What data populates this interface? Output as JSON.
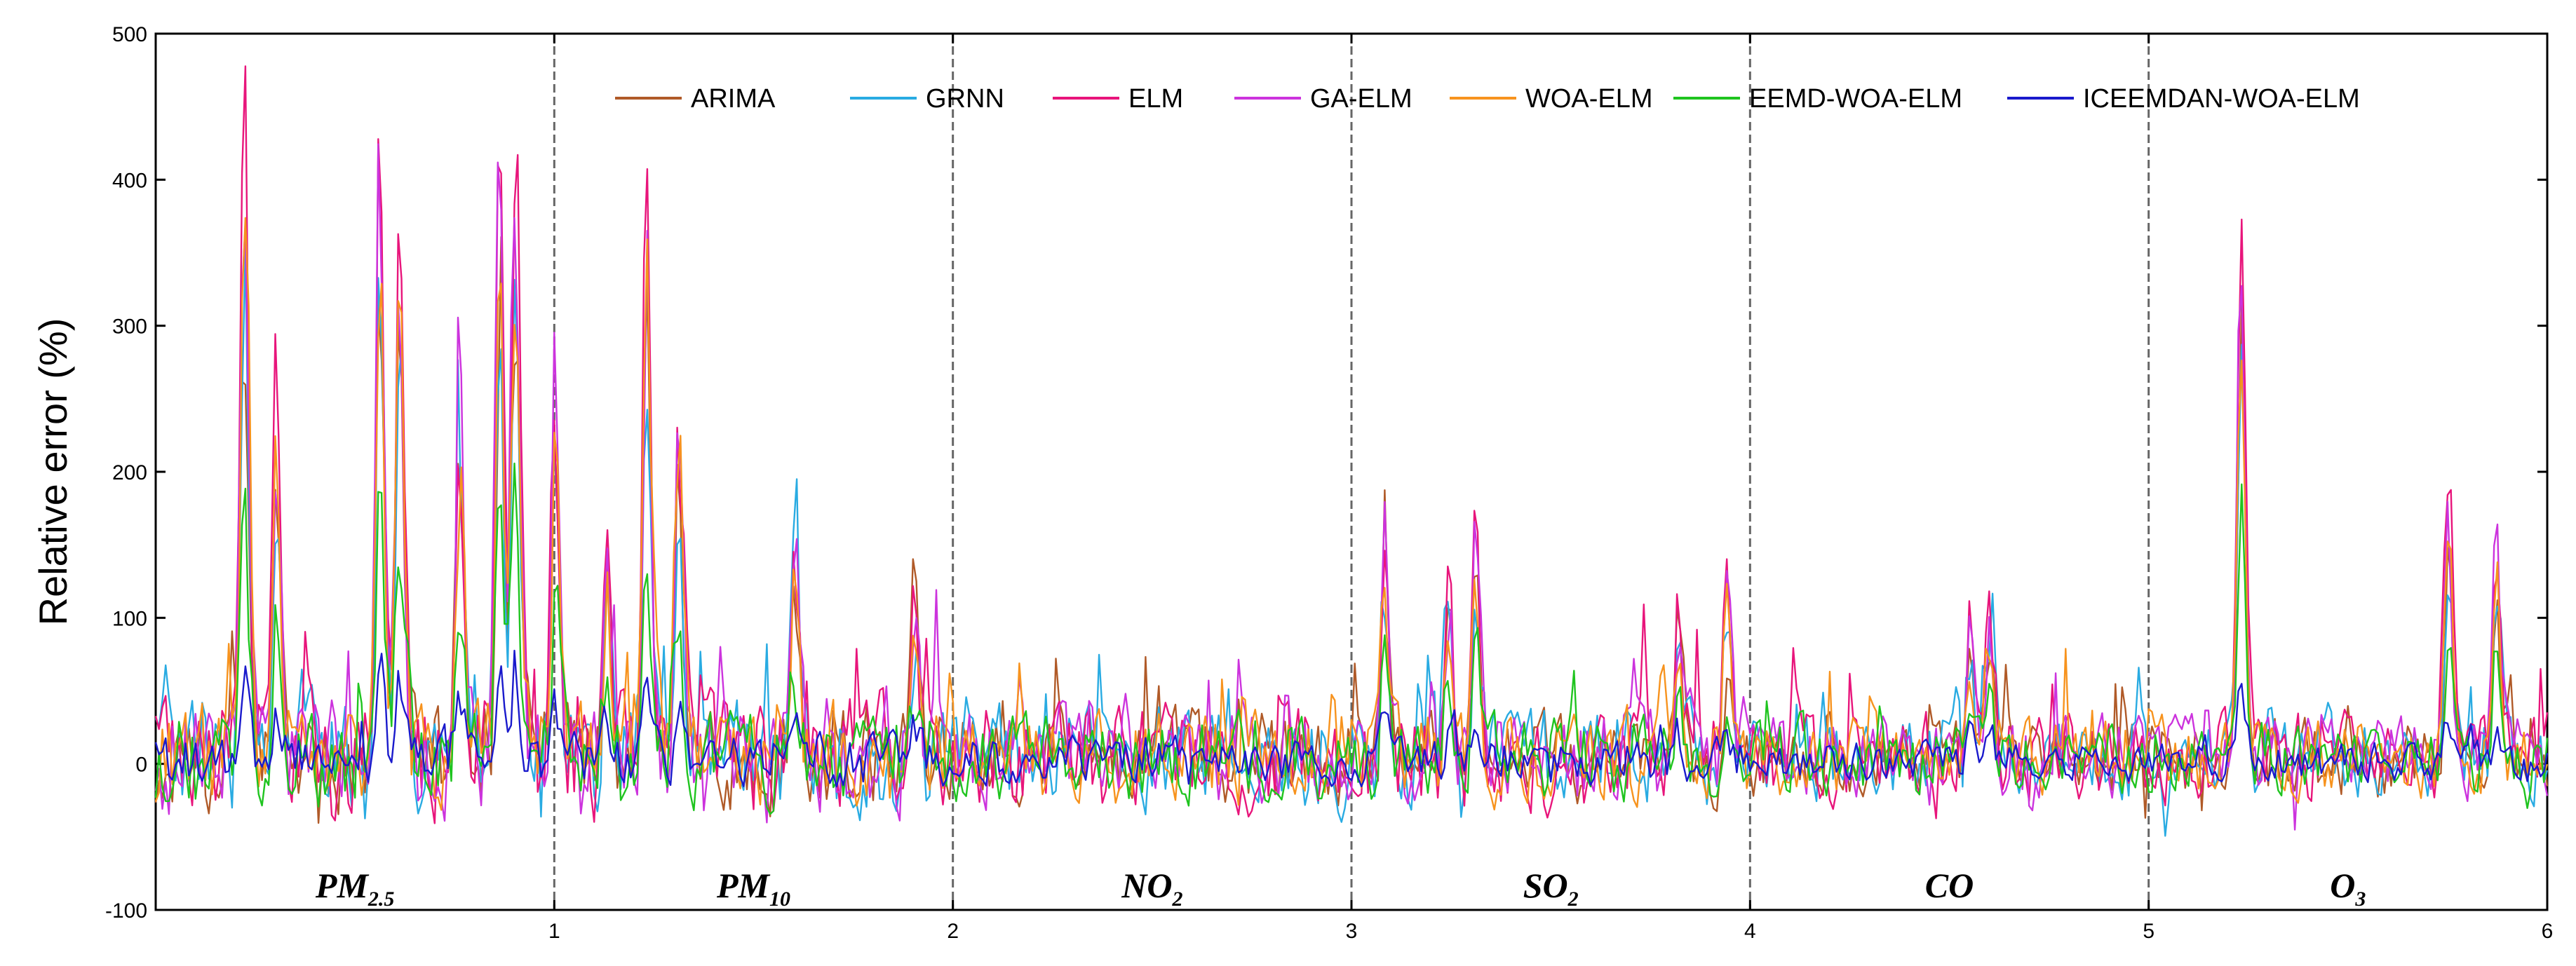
{
  "chart_data": {
    "type": "line",
    "title": "",
    "xlabel": "",
    "ylabel": "Relative error (%)",
    "xlim": [
      0,
      6
    ],
    "ylim": [
      -100,
      500
    ],
    "xticks": [
      1,
      2,
      3,
      4,
      5,
      6
    ],
    "yticks": [
      -100,
      0,
      100,
      200,
      300,
      400,
      500
    ],
    "grid": false,
    "legend_position": "top",
    "dividers": [
      1,
      2,
      3,
      4,
      5
    ],
    "regions": [
      {
        "main": "PM",
        "sub": "2.5",
        "center": 0.5
      },
      {
        "main": "PM",
        "sub": "10",
        "center": 1.5
      },
      {
        "main": "NO",
        "sub": "2",
        "center": 2.5
      },
      {
        "main": "SO",
        "sub": "2",
        "center": 3.5
      },
      {
        "main": "CO",
        "sub": "",
        "center": 4.5
      },
      {
        "main": "O",
        "sub": "3",
        "center": 5.5
      }
    ],
    "series": [
      {
        "name": "ARIMA",
        "color": "#b05a28",
        "amplitude": 0.85,
        "noise": 22,
        "spikeScale": 0.8,
        "seed": 11
      },
      {
        "name": "GRNN",
        "color": "#29abe2",
        "amplitude": 0.95,
        "noise": 24,
        "spikeScale": 0.75,
        "seed": 23
      },
      {
        "name": "ELM",
        "color": "#e8157b",
        "amplitude": 1.0,
        "noise": 25,
        "spikeScale": 1.0,
        "seed": 37
      },
      {
        "name": "GA-ELM",
        "color": "#cc33dd",
        "amplitude": 0.95,
        "noise": 24,
        "spikeScale": 0.95,
        "seed": 41
      },
      {
        "name": "WOA-ELM",
        "color": "#f7931e",
        "amplitude": 0.9,
        "noise": 22,
        "spikeScale": 0.85,
        "seed": 53
      },
      {
        "name": "EEMD-WOA-ELM",
        "color": "#1fc41f",
        "amplitude": 0.45,
        "noise": 20,
        "spikeScale": 0.45,
        "seed": 67
      },
      {
        "name": "ICEEMDAN-WOA-ELM",
        "color": "#1a1acc",
        "amplitude": 0.2,
        "noise": 11,
        "spikeScale": 0.15,
        "seed": 79
      }
    ],
    "peaks": [
      {
        "x": 0.22,
        "y": 500
      },
      {
        "x": 0.3,
        "y": 295
      },
      {
        "x": 0.56,
        "y": 500
      },
      {
        "x": 0.61,
        "y": 440
      },
      {
        "x": 0.76,
        "y": 305
      },
      {
        "x": 0.86,
        "y": 490
      },
      {
        "x": 0.9,
        "y": 480
      },
      {
        "x": 1.0,
        "y": 335
      },
      {
        "x": 1.13,
        "y": 175
      },
      {
        "x": 1.23,
        "y": 430
      },
      {
        "x": 1.31,
        "y": 260
      },
      {
        "x": 1.6,
        "y": 170
      },
      {
        "x": 1.9,
        "y": 140
      },
      {
        "x": 3.08,
        "y": 200
      },
      {
        "x": 3.31,
        "y": 185
      },
      {
        "x": 3.24,
        "y": 145
      },
      {
        "x": 3.82,
        "y": 130
      },
      {
        "x": 3.94,
        "y": 125
      },
      {
        "x": 4.55,
        "y": 115
      },
      {
        "x": 4.6,
        "y": 110
      },
      {
        "x": 5.23,
        "y": 430
      },
      {
        "x": 5.75,
        "y": 210
      },
      {
        "x": 5.87,
        "y": 170
      }
    ]
  }
}
